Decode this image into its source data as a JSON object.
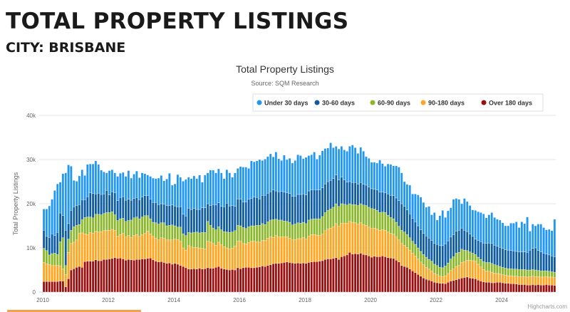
{
  "page": {
    "heading": "TOTAL PROPERTY LISTINGS",
    "subheading": "CITY: BRISBANE"
  },
  "chart_data": {
    "type": "bar",
    "stacked": true,
    "title": "Total Property Listings",
    "subtitle": "Source: SQM Research",
    "ylabel": "Total Property Listings",
    "xlabel": "",
    "ylim": [
      0,
      40000
    ],
    "yticks": [
      "0",
      "10k",
      "20k",
      "30k",
      "40k"
    ],
    "xticks": [
      "2010",
      "2012",
      "2014",
      "2016",
      "2018",
      "2020",
      "2022",
      "2024"
    ],
    "x_start": "2010-01",
    "x_end": "2025-08",
    "x_interval": "monthly",
    "grid": true,
    "legend_position": "top-right",
    "credit": "Highcharts.com",
    "series": [
      {
        "name": "Under 30 days",
        "color": "#2196f3",
        "values": [
          4800,
          6200,
          7100,
          7800,
          10200,
          11000,
          7000,
          9500,
          13000,
          13300,
          10000,
          6000,
          5500,
          6500,
          6800,
          5500,
          7300,
          6500,
          6700,
          7500,
          6500,
          5500,
          5000,
          4000,
          5500,
          5000,
          4500,
          5500,
          5500,
          5500,
          5400,
          6500,
          5000,
          5500,
          6000,
          5000,
          5500,
          5000,
          4700,
          5200,
          5500,
          5400,
          6000,
          6400,
          5300,
          6000,
          7300,
          4500,
          5000,
          7300,
          6700,
          7500,
          8300,
          7000,
          7000,
          7400,
          7000,
          7800,
          5800,
          7400,
          7000,
          8000,
          7800,
          7300,
          7700,
          7600,
          6400,
          7600,
          7500,
          6400,
          7600,
          6900,
          7400,
          7900,
          7900,
          7000,
          8500,
          8000,
          8300,
          8900,
          7900,
          8200,
          8300,
          8600,
          7500,
          8800,
          7500,
          7000,
          8400,
          7500,
          8000,
          7500,
          8100,
          9000,
          8800,
          8000,
          8500,
          8000,
          8000,
          8500,
          7000,
          7900,
          8400,
          8000,
          7600,
          8500,
          7000,
          6500,
          7000,
          7000,
          6800,
          7000,
          8000,
          8500,
          7900,
          7000,
          8000,
          7500,
          6500,
          6500,
          6000,
          6100,
          6100,
          7300,
          6500,
          6000,
          6800,
          7000,
          6800,
          7300,
          7600,
          7000,
          5600,
          5800,
          6500,
          5500,
          6300,
          7000,
          7400,
          7000,
          6500,
          7200,
          5800,
          7000,
          5500,
          6800,
          8000,
          6000,
          6800,
          6600,
          8000,
          7400,
          7000,
          5500,
          7200,
          6800,
          6500,
          6000,
          6500,
          6500,
          6600,
          6600,
          5800,
          6400,
          7000,
          6300,
          6100,
          6200,
          5800,
          5400,
          5500,
          6200,
          6300,
          6700,
          5500,
          6800,
          6400,
          8000,
          4300,
          5500,
          5000,
          6000,
          6300,
          5800,
          5500,
          5800,
          5700,
          8500
        ]
      },
      {
        "name": "30-60 days",
        "color": "#0d5ca3",
        "values": [
          4100,
          3200,
          4000,
          4500,
          4000,
          5000,
          6500,
          5000,
          8000,
          3500,
          4500,
          4500,
          4500,
          4500,
          4500,
          4000,
          4600,
          5500,
          5500,
          4600,
          4800,
          4600,
          4400,
          5000,
          4000,
          4500,
          5000,
          4500,
          4800,
          4900,
          4800,
          4800,
          4500,
          4400,
          4400,
          4300,
          4500,
          4500,
          4500,
          4400,
          4500,
          4600,
          4400,
          4300,
          4200,
          4600,
          4500,
          4500,
          4500,
          4600,
          4600,
          4400,
          4400,
          5500,
          5300,
          5400,
          5100,
          5300,
          5600,
          5600,
          4000,
          4500,
          5300,
          5600,
          5400,
          5300,
          5600,
          6500,
          6000,
          6000,
          5500,
          6000,
          6000,
          5800,
          6000,
          6200,
          6200,
          6500,
          6300,
          6000,
          6400,
          6600,
          6500,
          6400,
          6700,
          6400,
          6400,
          6500,
          6500,
          6500,
          6500,
          6500,
          6300,
          6400,
          6500,
          6400,
          6500,
          6600,
          6600,
          6600,
          6500,
          6500,
          6500,
          6500,
          6500,
          6500,
          6500,
          6500,
          6000,
          6000,
          5500,
          5200,
          5000,
          5000,
          5000,
          4800,
          4800,
          4700,
          4600,
          4600,
          4500,
          4500,
          4600,
          4600,
          4500,
          4500,
          4800,
          5000,
          5200,
          5500,
          5800,
          6000,
          5800,
          5600,
          5400,
          5200,
          5100,
          5000,
          4900,
          4800,
          4800,
          4800,
          4700,
          4700,
          4800,
          4900,
          5000,
          5000,
          5000,
          5000,
          5000,
          5000,
          5000,
          4800,
          4500,
          4300,
          4000,
          3800,
          3500,
          3800,
          4000,
          4200,
          4300,
          4400,
          4500,
          4400,
          4400,
          4300,
          4300,
          4200,
          4200,
          4100,
          4100,
          4000,
          4000,
          4000,
          4000,
          4000,
          4500,
          4800,
          5000,
          4500,
          4300,
          4000,
          3800,
          3700,
          3600,
          3500
        ]
      },
      {
        "name": "60-90 days",
        "color": "#8ab82a",
        "values": [
          3200,
          3000,
          2200,
          2700,
          2800,
          2500,
          5500,
          7000,
          2000,
          3000,
          3000,
          3500,
          3300,
          2000,
          3000,
          3700,
          4000,
          3500,
          3500,
          3800,
          4000,
          3800,
          3900,
          4000,
          4000,
          4000,
          3500,
          3600,
          3600,
          3400,
          3500,
          3400,
          4000,
          4000,
          4000,
          4000,
          4000,
          4000,
          3500,
          3400,
          3200,
          3500,
          3600,
          3400,
          3500,
          3200,
          3300,
          3400,
          3000,
          2800,
          3200,
          3200,
          3300,
          3000,
          3200,
          3400,
          3500,
          3400,
          3600,
          3700,
          4500,
          3800,
          3500,
          3500,
          3500,
          3400,
          3400,
          3600,
          3700,
          3700,
          3500,
          3600,
          3500,
          3600,
          3500,
          3600,
          3500,
          3500,
          3700,
          3800,
          3800,
          3600,
          3700,
          3800,
          4000,
          3700,
          3800,
          3800,
          3600,
          3500,
          3600,
          3400,
          3500,
          3600,
          3500,
          3400,
          3500,
          3600,
          3500,
          3600,
          3700,
          3800,
          4000,
          4100,
          4200,
          4300,
          4400,
          4500,
          4500,
          4400,
          4300,
          4100,
          4000,
          4000,
          4100,
          4200,
          4300,
          4400,
          4500,
          4500,
          4500,
          4300,
          4200,
          4000,
          4000,
          4000,
          3800,
          3600,
          3500,
          3300,
          3100,
          3000,
          3000,
          2900,
          2800,
          2700,
          2600,
          2500,
          2400,
          2300,
          2300,
          2200,
          2200,
          2100,
          2100,
          2000,
          2000,
          2200,
          2400,
          2600,
          2800,
          3000,
          3000,
          3000,
          2600,
          2200,
          1900,
          1700,
          1500,
          1600,
          1700,
          1800,
          1900,
          2000,
          2000,
          1900,
          1800,
          1700,
          1700,
          1600,
          1600,
          1600,
          1600,
          1600,
          1600,
          1600,
          1600,
          1600,
          1500,
          1500,
          1500,
          1400,
          1400,
          1400,
          1300,
          1300,
          1200,
          1200
        ]
      },
      {
        "name": "90-180 days",
        "color": "#ffa51f",
        "values": [
          4300,
          4000,
          3800,
          3600,
          3600,
          3600,
          3400,
          2800,
          2800,
          6000,
          6000,
          6000,
          6200,
          7500,
          7800,
          6300,
          6000,
          6500,
          6300,
          6500,
          6500,
          6600,
          6500,
          6600,
          6500,
          6600,
          6200,
          5000,
          5300,
          5800,
          5300,
          5400,
          5000,
          5600,
          5600,
          5200,
          5500,
          5800,
          6200,
          5500,
          5300,
          5200,
          5000,
          5400,
          5500,
          5300,
          5200,
          5500,
          5500,
          5600,
          5500,
          4200,
          4000,
          5300,
          5000,
          4800,
          4900,
          4600,
          4700,
          4500,
          6000,
          5900,
          5600,
          5000,
          5500,
          5300,
          5100,
          4900,
          4800,
          4800,
          5400,
          6000,
          6200,
          5500,
          5300,
          5600,
          6000,
          6000,
          5800,
          5600,
          5800,
          5900,
          6200,
          6300,
          6000,
          6300,
          6000,
          5900,
          5800,
          5700,
          5500,
          5200,
          5400,
          5500,
          5600,
          5800,
          5500,
          6000,
          6200,
          6100,
          6000,
          5800,
          6000,
          6500,
          6800,
          7000,
          7200,
          7700,
          7500,
          7600,
          7400,
          7200,
          7000,
          7200,
          7000,
          6800,
          6900,
          6800,
          6700,
          6500,
          6500,
          6400,
          6300,
          6000,
          5900,
          6000,
          5800,
          5600,
          5500,
          5300,
          5000,
          5000,
          4800,
          4500,
          4300,
          4000,
          3800,
          3500,
          3200,
          3000,
          2700,
          2500,
          2300,
          2000,
          1800,
          1600,
          1500,
          1800,
          2000,
          2400,
          2600,
          3000,
          3000,
          3500,
          3600,
          3800,
          4000,
          4000,
          4000,
          3600,
          3200,
          2800,
          2600,
          2500,
          2400,
          2200,
          2000,
          1900,
          1800,
          1800,
          1700,
          1800,
          1700,
          1800,
          1800,
          1800,
          1800,
          1800,
          1900,
          1900,
          1900,
          1800,
          1800,
          1800,
          1800,
          1800,
          1800,
          1800
        ]
      },
      {
        "name": "Over 180 days",
        "color": "#990e0e",
        "values": [
          2400,
          2400,
          2400,
          2400,
          2400,
          2400,
          2500,
          2500,
          1200,
          3000,
          5000,
          5300,
          5600,
          5800,
          5600,
          6900,
          7000,
          7000,
          7000,
          7300,
          7100,
          7100,
          7400,
          7400,
          7500,
          7600,
          7800,
          7600,
          7700,
          7500,
          7200,
          7400,
          7300,
          7200,
          7400,
          7400,
          7500,
          7500,
          7600,
          7700,
          7300,
          7000,
          6800,
          6900,
          6700,
          6500,
          6600,
          6300,
          6500,
          6300,
          6000,
          5800,
          5500,
          5200,
          5200,
          5300,
          5200,
          5400,
          5200,
          5300,
          5500,
          5400,
          5400,
          5600,
          5800,
          5400,
          5200,
          5100,
          5000,
          5100,
          5000,
          5500,
          5300,
          5500,
          5600,
          5600,
          5500,
          5500,
          5600,
          5700,
          5900,
          5800,
          6000,
          6200,
          6400,
          6500,
          6500,
          6600,
          6700,
          6800,
          6700,
          6600,
          6500,
          6600,
          6500,
          6600,
          6500,
          6700,
          6800,
          6900,
          6900,
          7000,
          7100,
          7400,
          7500,
          7500,
          7600,
          7800,
          7400,
          8000,
          8200,
          8400,
          9000,
          8600,
          8700,
          8600,
          8800,
          8500,
          8400,
          8200,
          7900,
          8100,
          8000,
          8000,
          8200,
          8000,
          7800,
          7700,
          7600,
          7200,
          6800,
          6000,
          5800,
          5600,
          5200,
          4800,
          4400,
          4000,
          3600,
          3200,
          2900,
          2700,
          2500,
          2200,
          2100,
          2000,
          2000,
          1900,
          2200,
          2500,
          2600,
          2800,
          3000,
          3200,
          3300,
          3400,
          3200,
          3100,
          3000,
          2700,
          2500,
          2300,
          2200,
          2200,
          2100,
          2100,
          2200,
          2200,
          2100,
          2000,
          2000,
          1900,
          1900,
          1800,
          1700,
          1700,
          1700,
          1600,
          1600,
          1700,
          1600,
          1700,
          1600,
          1600,
          1700,
          1600,
          1600,
          1500
        ]
      }
    ]
  }
}
